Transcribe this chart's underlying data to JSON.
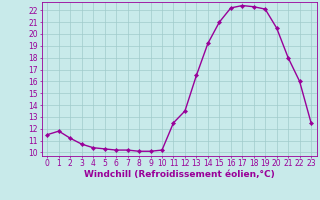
{
  "hours": [
    0,
    1,
    2,
    3,
    4,
    5,
    6,
    7,
    8,
    9,
    10,
    11,
    12,
    13,
    14,
    15,
    16,
    17,
    18,
    19,
    20,
    21,
    22,
    23
  ],
  "values": [
    11.5,
    11.8,
    11.2,
    10.7,
    10.4,
    10.3,
    10.2,
    10.2,
    10.1,
    10.1,
    10.2,
    12.5,
    13.5,
    16.5,
    19.2,
    21.0,
    22.2,
    22.4,
    22.3,
    22.1,
    20.5,
    18.0,
    16.0,
    12.5
  ],
  "line_color": "#990099",
  "marker": "D",
  "marker_size": 2.2,
  "bg_color": "#c8eaea",
  "grid_color": "#a0cbcb",
  "xlabel": "Windchill (Refroidissement éolien,°C)",
  "ylim": [
    9.7,
    22.7
  ],
  "xlim": [
    -0.5,
    23.5
  ],
  "yticks": [
    10,
    11,
    12,
    13,
    14,
    15,
    16,
    17,
    18,
    19,
    20,
    21,
    22
  ],
  "xticks": [
    0,
    1,
    2,
    3,
    4,
    5,
    6,
    7,
    8,
    9,
    10,
    11,
    12,
    13,
    14,
    15,
    16,
    17,
    18,
    19,
    20,
    21,
    22,
    23
  ],
  "tick_label_color": "#990099",
  "tick_label_size": 5.5,
  "xlabel_size": 6.5,
  "xlabel_color": "#990099",
  "xlabel_bold": true,
  "line_width": 1.0
}
